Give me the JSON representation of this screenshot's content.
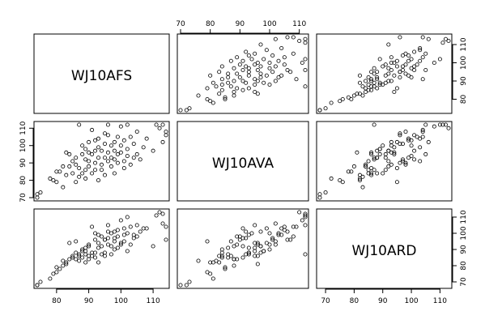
{
  "chart_data": {
    "type": "scatter",
    "variables": [
      "WJ10AFS",
      "WJ10AVA",
      "WJ10ARD"
    ],
    "ranges": {
      "WJ10AFS": [
        74,
        114
      ],
      "WJ10AVA": [
        70,
        112
      ],
      "WJ10ARD": [
        68,
        113
      ]
    },
    "ticks": {
      "WJ10AFS": [
        80,
        90,
        100,
        110
      ],
      "WJ10AVA": [
        70,
        80,
        90,
        100,
        110
      ],
      "WJ10ARD": [
        70,
        80,
        90,
        100,
        110
      ]
    },
    "points": [
      [
        74,
        70,
        68
      ],
      [
        74,
        72,
        68
      ],
      [
        75,
        73,
        70
      ],
      [
        78,
        81,
        72
      ],
      [
        79,
        80,
        75
      ],
      [
        80,
        79,
        76
      ],
      [
        81,
        85,
        78
      ],
      [
        82,
        88,
        80
      ],
      [
        82,
        76,
        83
      ],
      [
        83,
        83,
        82
      ],
      [
        84,
        88,
        84
      ],
      [
        85,
        91,
        85
      ],
      [
        85,
        84,
        86
      ],
      [
        86,
        89,
        84
      ],
      [
        86,
        93,
        88
      ],
      [
        87,
        82,
        83
      ],
      [
        87,
        87,
        86
      ],
      [
        88,
        95,
        89
      ],
      [
        88,
        84,
        85
      ],
      [
        88,
        100,
        90
      ],
      [
        89,
        86,
        91
      ],
      [
        89,
        81,
        82
      ],
      [
        89,
        92,
        87
      ],
      [
        90,
        96,
        86
      ],
      [
        90,
        91,
        92
      ],
      [
        90,
        88,
        84
      ],
      [
        90,
        102,
        93
      ],
      [
        91,
        84,
        88
      ],
      [
        91,
        95,
        86
      ],
      [
        92,
        97,
        88
      ],
      [
        92,
        90,
        96
      ],
      [
        92,
        86,
        85
      ],
      [
        93,
        104,
        99
      ],
      [
        93,
        93,
        91
      ],
      [
        93,
        99,
        94
      ],
      [
        94,
        86,
        87
      ],
      [
        94,
        97,
        92
      ],
      [
        94,
        89,
        98
      ],
      [
        95,
        101,
        96
      ],
      [
        95,
        93,
        88
      ],
      [
        95,
        83,
        86
      ],
      [
        96,
        106,
        101
      ],
      [
        96,
        96,
        93
      ],
      [
        96,
        91,
        97
      ],
      [
        97,
        100,
        100
      ],
      [
        97,
        88,
        92
      ],
      [
        97,
        93,
        87
      ],
      [
        98,
        97,
        101
      ],
      [
        98,
        84,
        90
      ],
      [
        98,
        102,
        95
      ],
      [
        99,
        95,
        91
      ],
      [
        99,
        105,
        102
      ],
      [
        99,
        90,
        98
      ],
      [
        100,
        96,
        94
      ],
      [
        100,
        100,
        93
      ],
      [
        101,
        91,
        103
      ],
      [
        101,
        103,
        99
      ],
      [
        101,
        87,
        95
      ],
      [
        102,
        94,
        100
      ],
      [
        102,
        98,
        89
      ],
      [
        103,
        105,
        104
      ],
      [
        103,
        89,
        93
      ],
      [
        104,
        101,
        97
      ],
      [
        104,
        93,
        99
      ],
      [
        105,
        108,
        98
      ],
      [
        106,
        92,
        101
      ],
      [
        107,
        99,
        103
      ],
      [
        108,
        104,
        103
      ],
      [
        110,
        97,
        92
      ],
      [
        111,
        112,
        111
      ],
      [
        112,
        110,
        113
      ],
      [
        113,
        102,
        106
      ],
      [
        113,
        112,
        112
      ],
      [
        114,
        106,
        96
      ],
      [
        114,
        108,
        104
      ],
      [
        87,
        112,
        87
      ],
      [
        91,
        109,
        104
      ],
      [
        96,
        112,
        105
      ],
      [
        83,
        96,
        81
      ],
      [
        80,
        85,
        79
      ],
      [
        86,
        79,
        95
      ],
      [
        95,
        107,
        96
      ],
      [
        100,
        111,
        108
      ],
      [
        93,
        80,
        82
      ],
      [
        105,
        95,
        105
      ],
      [
        98,
        92,
        97
      ],
      [
        89,
        98,
        89
      ],
      [
        92,
        103,
        100
      ],
      [
        84,
        95,
        94
      ],
      [
        102,
        112,
        110
      ]
    ]
  }
}
